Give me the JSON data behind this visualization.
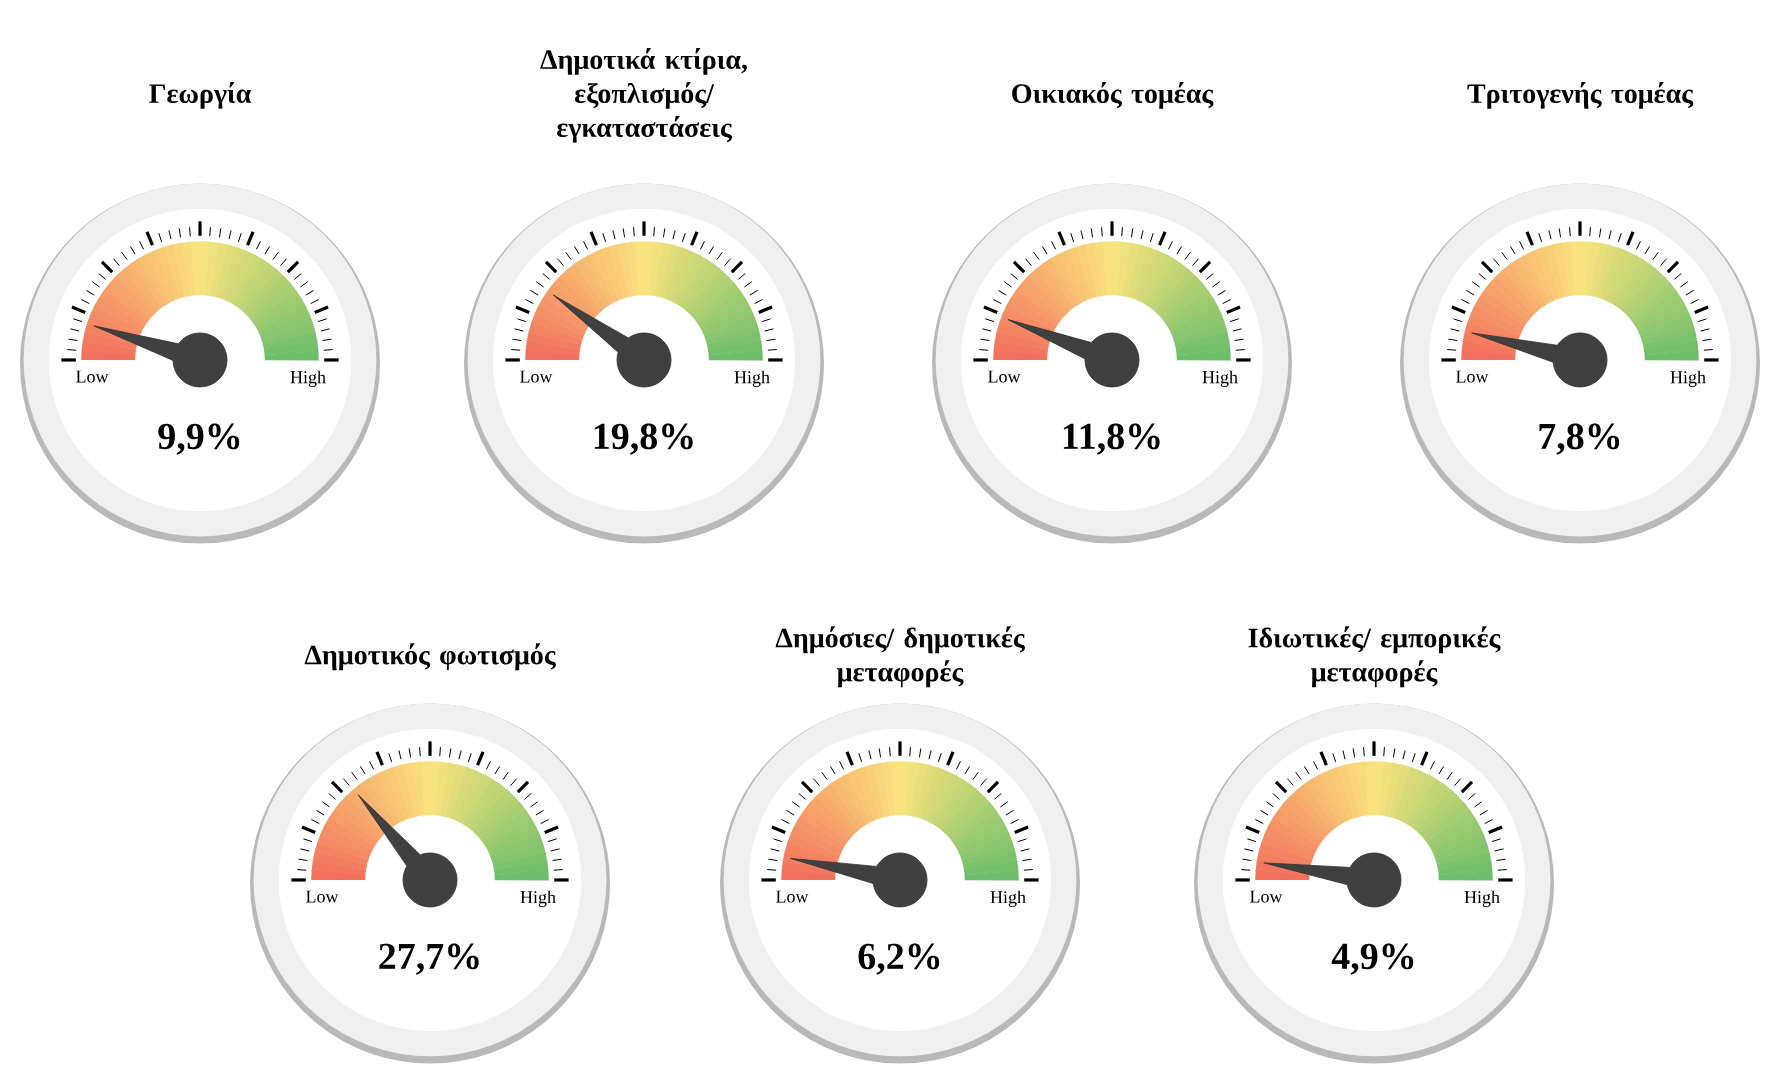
{
  "chart_data": [
    {
      "type": "other",
      "title": "Γεωργία",
      "values": [
        9.9
      ],
      "value_labels": [
        "9,9%"
      ],
      "annotations": [
        "Low",
        "High"
      ]
    },
    {
      "type": "other",
      "title": "Δημοτικά κτίρια, εξοπλισμός/ εγκαταστάσεις",
      "values": [
        19.8
      ],
      "value_labels": [
        "19,8%"
      ],
      "annotations": [
        "Low",
        "High"
      ]
    },
    {
      "type": "other",
      "title": "Οικιακός τομέας",
      "values": [
        11.8
      ],
      "value_labels": [
        "11,8%"
      ],
      "annotations": [
        "Low",
        "High"
      ]
    },
    {
      "type": "other",
      "title": "Τριτογενής τομέας",
      "values": [
        7.8
      ],
      "value_labels": [
        "7,8%"
      ],
      "annotations": [
        "Low",
        "High"
      ]
    },
    {
      "type": "other",
      "title": "Δημοτικός φωτισμός",
      "values": [
        27.7
      ],
      "value_labels": [
        "27,7%"
      ],
      "annotations": [
        "Low",
        "High"
      ]
    },
    {
      "type": "other",
      "title": "Δημόσιες/ δημοτικές μεταφορές",
      "values": [
        6.2
      ],
      "value_labels": [
        "6,2%"
      ],
      "annotations": [
        "Low",
        "High"
      ]
    },
    {
      "type": "other",
      "title": "Ιδιωτικές/ εμπορικές μεταφορές",
      "values": [
        4.9
      ],
      "value_labels": [
        "4,9%"
      ],
      "annotations": [
        "Low",
        "High"
      ]
    }
  ]
}
